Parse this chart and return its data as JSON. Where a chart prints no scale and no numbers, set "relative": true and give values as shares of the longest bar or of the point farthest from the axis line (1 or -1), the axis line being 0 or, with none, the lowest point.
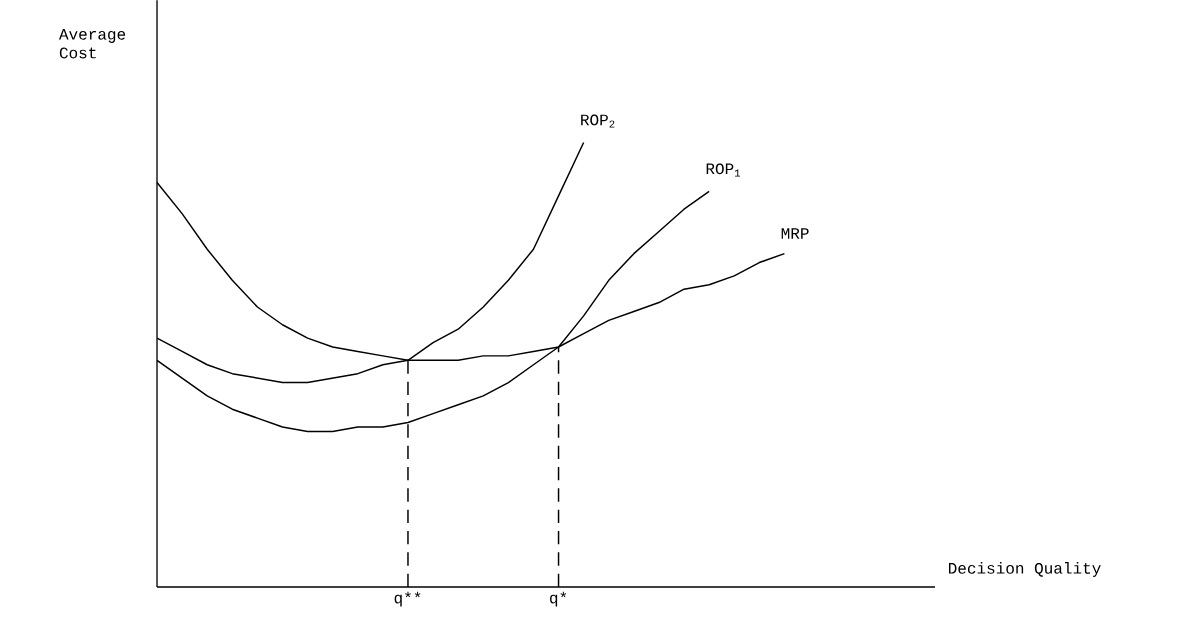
{
  "chart_data": {
    "type": "line",
    "relative": true,
    "xlabel": "Decision Quality",
    "annotations": [
      "Average Cost"
    ],
    "marker": "none",
    "line_style": "solid",
    "categories": [
      null,
      null,
      null,
      null,
      null,
      null,
      null,
      null,
      null,
      null,
      "q**",
      null,
      null,
      null,
      null,
      null,
      "q*",
      null,
      null,
      null,
      null,
      null,
      null,
      null,
      null,
      null,
      null,
      null,
      null,
      null,
      null,
      null
    ],
    "series": [
      {
        "name": "MRP",
        "color": "#000000",
        "values": [
          0.91,
          0.84,
          0.76,
          0.69,
          0.63,
          0.59,
          0.56,
          0.54,
          0.53,
          0.52,
          0.51,
          0.51,
          0.51,
          0.52,
          0.52,
          0.53,
          0.54,
          0.57,
          0.6,
          0.62,
          0.64,
          0.67,
          0.68,
          0.7,
          0.73,
          0.75,
          null,
          null,
          null,
          null,
          null,
          null
        ]
      },
      {
        "name": "ROP$_{2}$",
        "color": "#000000",
        "values": [
          0.56,
          0.53,
          0.5,
          0.48,
          0.47,
          0.46,
          0.46,
          0.47,
          0.48,
          0.5,
          0.51,
          0.55,
          0.58,
          0.63,
          0.69,
          0.76,
          0.88,
          1.0,
          null,
          null,
          null,
          null,
          null,
          null,
          null,
          null,
          null,
          null,
          null,
          null,
          null,
          null
        ]
      },
      {
        "name": "ROP$_{1}$",
        "color": "#000000",
        "values": [
          0.51,
          0.47,
          0.43,
          0.4,
          0.38,
          0.36,
          0.35,
          0.35,
          0.36,
          0.36,
          0.37,
          0.39,
          0.41,
          0.43,
          0.46,
          0.5,
          0.54,
          0.61,
          0.69,
          0.75,
          0.8,
          0.85,
          0.89,
          null,
          null,
          null,
          null,
          null,
          null,
          null,
          null,
          null
        ]
      }
    ],
    "ref_lines": [
      {
        "axis": "x",
        "value": "q**",
        "line_style": "dashed"
      },
      {
        "axis": "x",
        "value": "q*",
        "line_style": "dashed"
      }
    ]
  }
}
